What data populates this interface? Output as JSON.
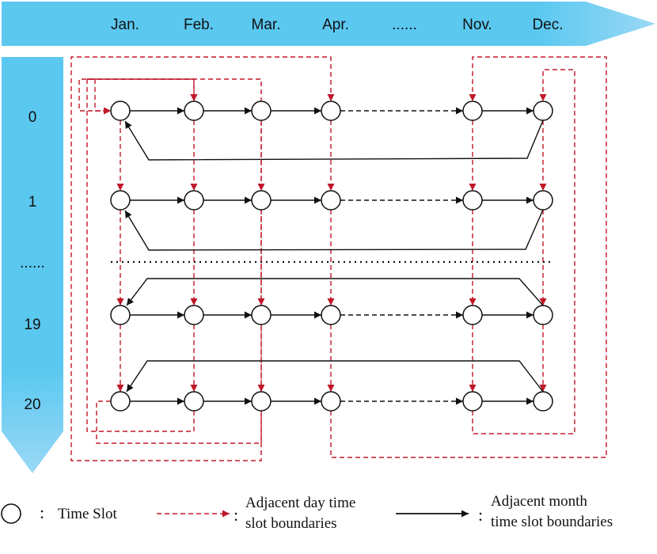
{
  "months": [
    "Jan.",
    "Feb.",
    "Mar.",
    "Apr.",
    "......",
    "Nov.",
    "Dec."
  ],
  "days": [
    "0",
    "1",
    "......",
    "19",
    "20"
  ],
  "colors": {
    "banner": "#5bc8f0",
    "banner_fade": "#8fd6f4",
    "red_dashed": "#c0182a",
    "black": "#111111"
  },
  "legend": {
    "colon": ":",
    "time_slot": "Time Slot",
    "day_line1": "Adjacent day time",
    "day_line2": "slot boundaries",
    "month_line1": "Adjacent month",
    "month_line2": "time slot boundaries"
  }
}
